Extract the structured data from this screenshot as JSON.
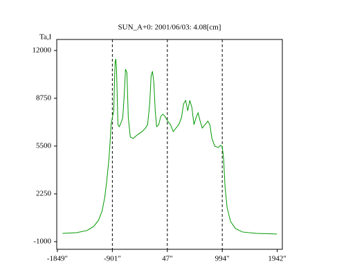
{
  "chart_data": {
    "type": "line",
    "title": "SUN_A+0: 2001/06/03: 4.08[cm]",
    "y_label": "Ta,I",
    "x": [
      -1759,
      -1520,
      -1342,
      -1222,
      -1139,
      -1079,
      -1032,
      -996,
      -960,
      -936,
      -924,
      -901,
      -877,
      -865,
      -853,
      -841,
      -829,
      -805,
      -781,
      -746,
      -722,
      -698,
      -674,
      -650,
      -626,
      -591,
      -543,
      -472,
      -388,
      -329,
      -293,
      -257,
      -233,
      -209,
      -185,
      -162,
      -138,
      -102,
      -66,
      -31,
      5,
      53,
      101,
      148,
      196,
      244,
      291,
      327,
      363,
      399,
      434,
      470,
      506,
      542,
      577,
      613,
      649,
      697,
      744,
      780,
      816,
      864,
      923,
      971,
      994,
      1018,
      1042,
      1078,
      1138,
      1221,
      1340,
      1579,
      1937
    ],
    "series": [
      {
        "name": "Ta,I",
        "color": "#009900",
        "values": [
          -434,
          -387,
          -246,
          37,
          460,
          1073,
          2015,
          3192,
          4605,
          6018,
          6960,
          7431,
          7902,
          9786,
          11199,
          11435,
          10728,
          6960,
          6819,
          7149,
          7431,
          8844,
          10728,
          10493,
          7431,
          6112,
          6018,
          6254,
          6489,
          6725,
          6960,
          8373,
          10257,
          10587,
          9786,
          7902,
          6819,
          6960,
          7525,
          7667,
          7525,
          7196,
          6960,
          6489,
          6725,
          6960,
          7431,
          8373,
          8609,
          7902,
          8609,
          8138,
          6960,
          7431,
          7761,
          7196,
          6725,
          6960,
          7196,
          6960,
          6018,
          5500,
          5406,
          5547,
          5453,
          4605,
          2721,
          1308,
          366,
          -105,
          -340,
          -434,
          -482
        ]
      }
    ],
    "xlim": [
      -1860,
      2030
    ],
    "ylim": [
      -1520,
      12750
    ],
    "xticks": [
      {
        "value": -1849,
        "label": "-1849\""
      },
      {
        "value": -901,
        "label": "-901\""
      },
      {
        "value": 47,
        "label": "47\""
      },
      {
        "value": 994,
        "label": "994\""
      },
      {
        "value": 1942,
        "label": "1942\""
      }
    ],
    "yticks": [
      -1000,
      2250,
      5500,
      8750,
      12000
    ],
    "vlines": [
      -901,
      47,
      994
    ]
  }
}
